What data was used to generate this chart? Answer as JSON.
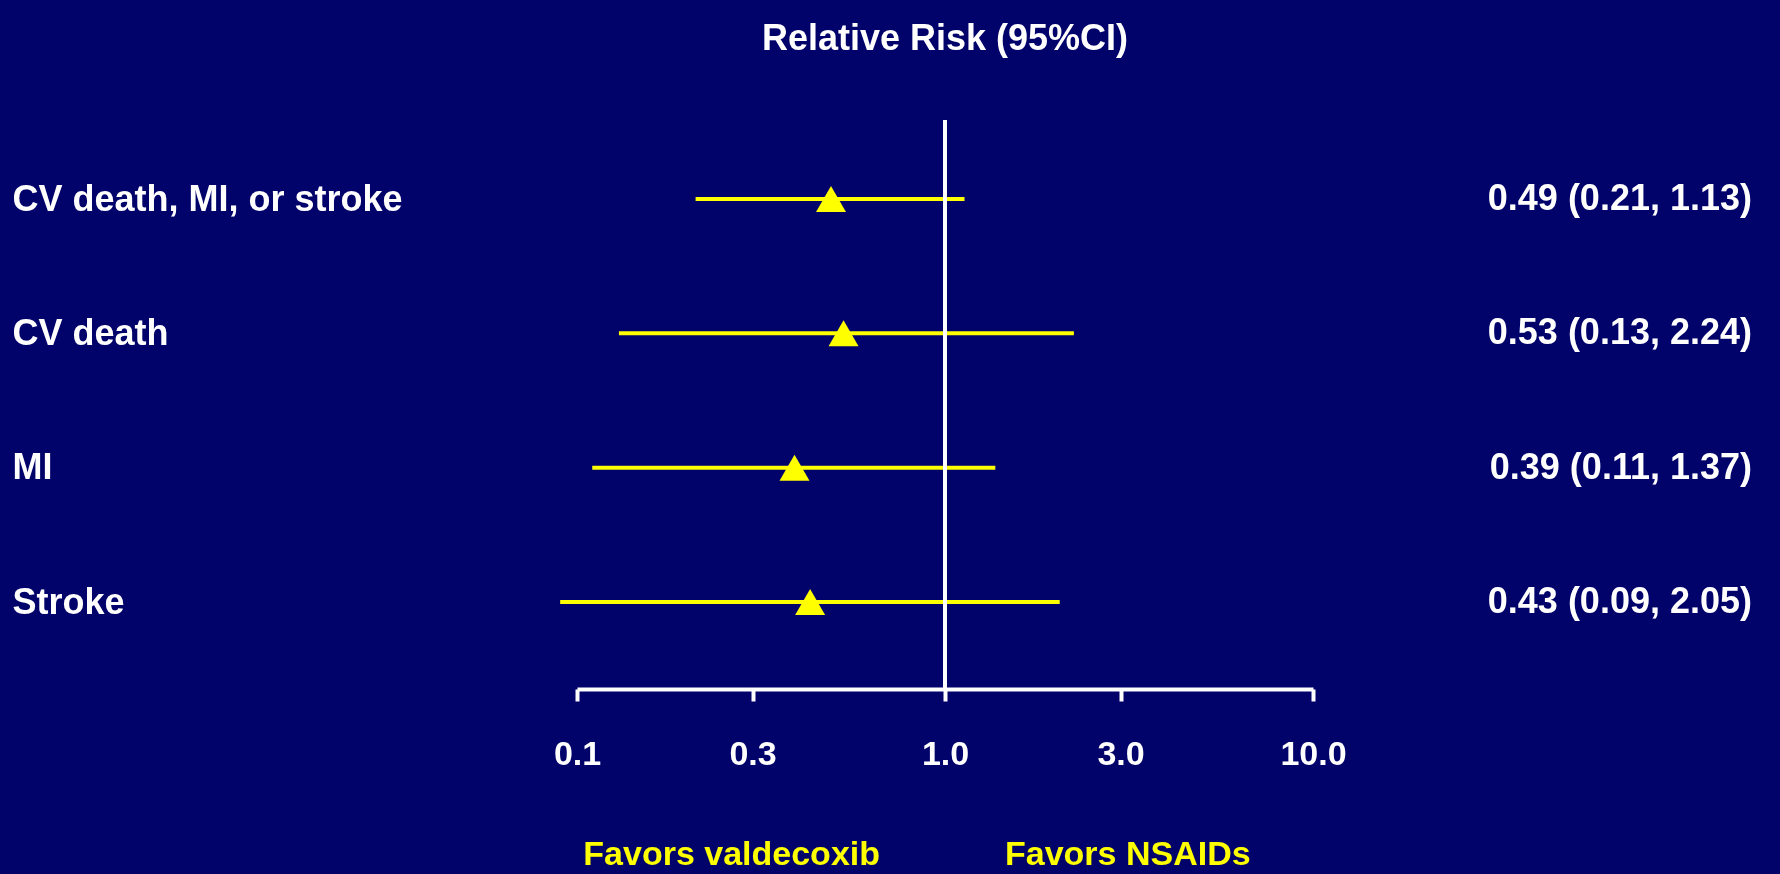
{
  "chart_data": {
    "type": "scatter",
    "title": "Relative Risk (95%CI)",
    "categories": [
      "CV death, MI, or stroke",
      "CV death",
      "MI",
      "Stroke"
    ],
    "values": [
      0.49,
      0.53,
      0.39,
      0.43
    ],
    "errors": [
      [
        0.21,
        1.13
      ],
      [
        0.13,
        2.24
      ],
      [
        0.11,
        1.37
      ],
      [
        0.09,
        2.05
      ]
    ],
    "value_labels": [
      "0.49 (0.21, 1.13)",
      "0.53 (0.13, 2.24)",
      "0.39 (0.11, 1.37)",
      "0.43 (0.09, 2.05)"
    ],
    "color": "#ffff00",
    "marker": "triangle",
    "log": "x",
    "grid": false,
    "legend": false,
    "xlim": [
      0.1,
      10
    ],
    "orientation": "horizontal",
    "xticks": [
      {
        "value": 0.1,
        "label": "0.1"
      },
      {
        "value": 0.3,
        "label": "0.3"
      },
      {
        "value": 1,
        "label": "1.0"
      },
      {
        "value": 3,
        "label": "3.0"
      },
      {
        "value": 10,
        "label": "10.0"
      }
    ],
    "ref_lines": [
      {
        "axis": "x",
        "value": 1,
        "color": "#ffffff"
      }
    ],
    "annotations": [
      "Favors valdecoxib",
      "Favors NSAIDs"
    ]
  }
}
